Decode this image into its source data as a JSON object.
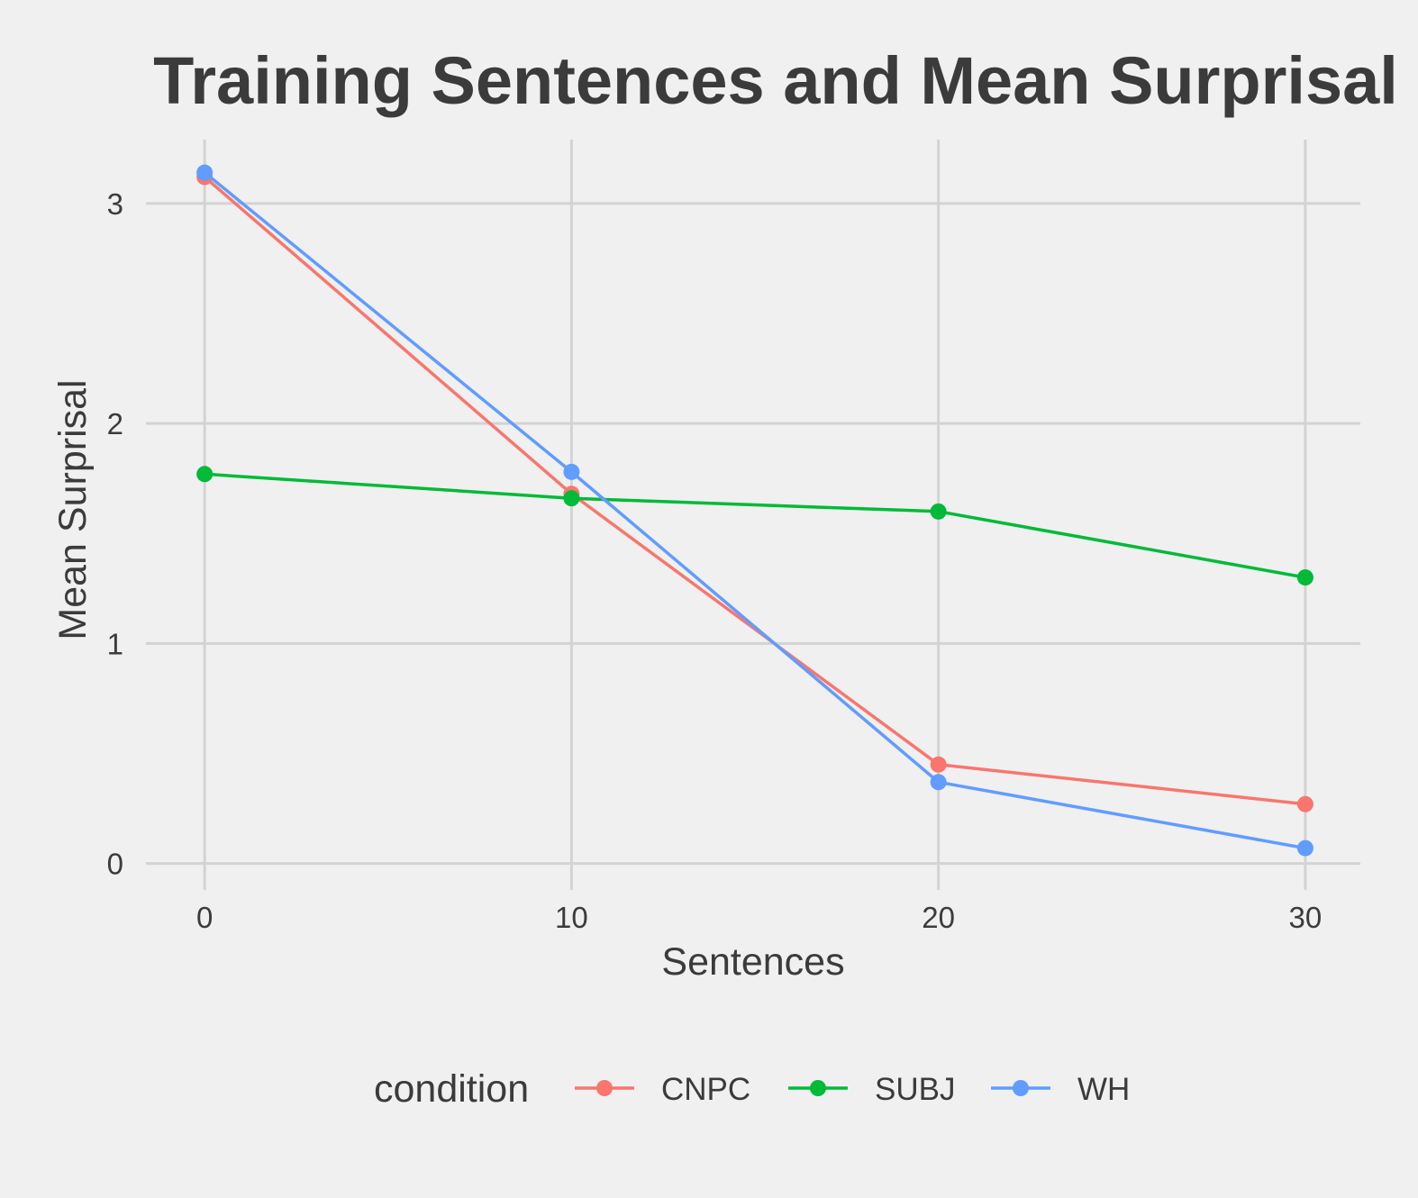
{
  "chart_data": {
    "type": "line",
    "title": "Training Sentences and Mean Surprisal",
    "xlabel": "Sentences",
    "ylabel": "Mean Surprisal",
    "x": [
      0,
      10,
      20,
      30
    ],
    "xticks": [
      "0",
      "10",
      "20",
      "30"
    ],
    "yticks": [
      "0",
      "1",
      "2",
      "3"
    ],
    "xlim": [
      -1.6,
      31.5
    ],
    "ylim": [
      -0.12,
      3.29
    ],
    "grid": true,
    "legend": {
      "title": "condition",
      "position": "bottom"
    },
    "series": [
      {
        "name": "CNPC",
        "color": "#f8766d",
        "values": [
          3.12,
          1.68,
          0.45,
          0.27
        ]
      },
      {
        "name": "SUBJ",
        "color": "#00ba38",
        "values": [
          1.77,
          1.66,
          1.6,
          1.3
        ]
      },
      {
        "name": "WH",
        "color": "#619cff",
        "values": [
          3.14,
          1.78,
          0.37,
          0.07
        ]
      }
    ]
  }
}
